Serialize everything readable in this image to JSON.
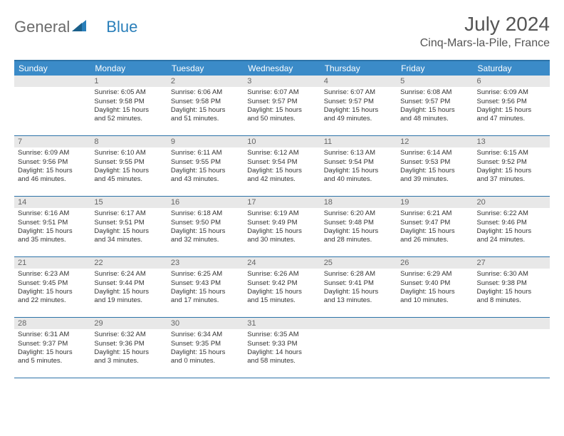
{
  "logo": {
    "part1": "General",
    "part2": "Blue"
  },
  "title": "July 2024",
  "location": "Cinq-Mars-la-Pile, France",
  "colors": {
    "header_bg": "#3b8bc8",
    "border": "#2d73a8",
    "daynum_bg": "#e8e8e8",
    "text": "#333333",
    "logo_gray": "#6b6b6b",
    "logo_blue": "#2a7fba"
  },
  "day_names": [
    "Sunday",
    "Monday",
    "Tuesday",
    "Wednesday",
    "Thursday",
    "Friday",
    "Saturday"
  ],
  "weeks": [
    [
      {
        "num": "",
        "lines": []
      },
      {
        "num": "1",
        "lines": [
          "Sunrise: 6:05 AM",
          "Sunset: 9:58 PM",
          "Daylight: 15 hours",
          "and 52 minutes."
        ]
      },
      {
        "num": "2",
        "lines": [
          "Sunrise: 6:06 AM",
          "Sunset: 9:58 PM",
          "Daylight: 15 hours",
          "and 51 minutes."
        ]
      },
      {
        "num": "3",
        "lines": [
          "Sunrise: 6:07 AM",
          "Sunset: 9:57 PM",
          "Daylight: 15 hours",
          "and 50 minutes."
        ]
      },
      {
        "num": "4",
        "lines": [
          "Sunrise: 6:07 AM",
          "Sunset: 9:57 PM",
          "Daylight: 15 hours",
          "and 49 minutes."
        ]
      },
      {
        "num": "5",
        "lines": [
          "Sunrise: 6:08 AM",
          "Sunset: 9:57 PM",
          "Daylight: 15 hours",
          "and 48 minutes."
        ]
      },
      {
        "num": "6",
        "lines": [
          "Sunrise: 6:09 AM",
          "Sunset: 9:56 PM",
          "Daylight: 15 hours",
          "and 47 minutes."
        ]
      }
    ],
    [
      {
        "num": "7",
        "lines": [
          "Sunrise: 6:09 AM",
          "Sunset: 9:56 PM",
          "Daylight: 15 hours",
          "and 46 minutes."
        ]
      },
      {
        "num": "8",
        "lines": [
          "Sunrise: 6:10 AM",
          "Sunset: 9:55 PM",
          "Daylight: 15 hours",
          "and 45 minutes."
        ]
      },
      {
        "num": "9",
        "lines": [
          "Sunrise: 6:11 AM",
          "Sunset: 9:55 PM",
          "Daylight: 15 hours",
          "and 43 minutes."
        ]
      },
      {
        "num": "10",
        "lines": [
          "Sunrise: 6:12 AM",
          "Sunset: 9:54 PM",
          "Daylight: 15 hours",
          "and 42 minutes."
        ]
      },
      {
        "num": "11",
        "lines": [
          "Sunrise: 6:13 AM",
          "Sunset: 9:54 PM",
          "Daylight: 15 hours",
          "and 40 minutes."
        ]
      },
      {
        "num": "12",
        "lines": [
          "Sunrise: 6:14 AM",
          "Sunset: 9:53 PM",
          "Daylight: 15 hours",
          "and 39 minutes."
        ]
      },
      {
        "num": "13",
        "lines": [
          "Sunrise: 6:15 AM",
          "Sunset: 9:52 PM",
          "Daylight: 15 hours",
          "and 37 minutes."
        ]
      }
    ],
    [
      {
        "num": "14",
        "lines": [
          "Sunrise: 6:16 AM",
          "Sunset: 9:51 PM",
          "Daylight: 15 hours",
          "and 35 minutes."
        ]
      },
      {
        "num": "15",
        "lines": [
          "Sunrise: 6:17 AM",
          "Sunset: 9:51 PM",
          "Daylight: 15 hours",
          "and 34 minutes."
        ]
      },
      {
        "num": "16",
        "lines": [
          "Sunrise: 6:18 AM",
          "Sunset: 9:50 PM",
          "Daylight: 15 hours",
          "and 32 minutes."
        ]
      },
      {
        "num": "17",
        "lines": [
          "Sunrise: 6:19 AM",
          "Sunset: 9:49 PM",
          "Daylight: 15 hours",
          "and 30 minutes."
        ]
      },
      {
        "num": "18",
        "lines": [
          "Sunrise: 6:20 AM",
          "Sunset: 9:48 PM",
          "Daylight: 15 hours",
          "and 28 minutes."
        ]
      },
      {
        "num": "19",
        "lines": [
          "Sunrise: 6:21 AM",
          "Sunset: 9:47 PM",
          "Daylight: 15 hours",
          "and 26 minutes."
        ]
      },
      {
        "num": "20",
        "lines": [
          "Sunrise: 6:22 AM",
          "Sunset: 9:46 PM",
          "Daylight: 15 hours",
          "and 24 minutes."
        ]
      }
    ],
    [
      {
        "num": "21",
        "lines": [
          "Sunrise: 6:23 AM",
          "Sunset: 9:45 PM",
          "Daylight: 15 hours",
          "and 22 minutes."
        ]
      },
      {
        "num": "22",
        "lines": [
          "Sunrise: 6:24 AM",
          "Sunset: 9:44 PM",
          "Daylight: 15 hours",
          "and 19 minutes."
        ]
      },
      {
        "num": "23",
        "lines": [
          "Sunrise: 6:25 AM",
          "Sunset: 9:43 PM",
          "Daylight: 15 hours",
          "and 17 minutes."
        ]
      },
      {
        "num": "24",
        "lines": [
          "Sunrise: 6:26 AM",
          "Sunset: 9:42 PM",
          "Daylight: 15 hours",
          "and 15 minutes."
        ]
      },
      {
        "num": "25",
        "lines": [
          "Sunrise: 6:28 AM",
          "Sunset: 9:41 PM",
          "Daylight: 15 hours",
          "and 13 minutes."
        ]
      },
      {
        "num": "26",
        "lines": [
          "Sunrise: 6:29 AM",
          "Sunset: 9:40 PM",
          "Daylight: 15 hours",
          "and 10 minutes."
        ]
      },
      {
        "num": "27",
        "lines": [
          "Sunrise: 6:30 AM",
          "Sunset: 9:38 PM",
          "Daylight: 15 hours",
          "and 8 minutes."
        ]
      }
    ],
    [
      {
        "num": "28",
        "lines": [
          "Sunrise: 6:31 AM",
          "Sunset: 9:37 PM",
          "Daylight: 15 hours",
          "and 5 minutes."
        ]
      },
      {
        "num": "29",
        "lines": [
          "Sunrise: 6:32 AM",
          "Sunset: 9:36 PM",
          "Daylight: 15 hours",
          "and 3 minutes."
        ]
      },
      {
        "num": "30",
        "lines": [
          "Sunrise: 6:34 AM",
          "Sunset: 9:35 PM",
          "Daylight: 15 hours",
          "and 0 minutes."
        ]
      },
      {
        "num": "31",
        "lines": [
          "Sunrise: 6:35 AM",
          "Sunset: 9:33 PM",
          "Daylight: 14 hours",
          "and 58 minutes."
        ]
      },
      {
        "num": "",
        "lines": []
      },
      {
        "num": "",
        "lines": []
      },
      {
        "num": "",
        "lines": []
      }
    ]
  ]
}
